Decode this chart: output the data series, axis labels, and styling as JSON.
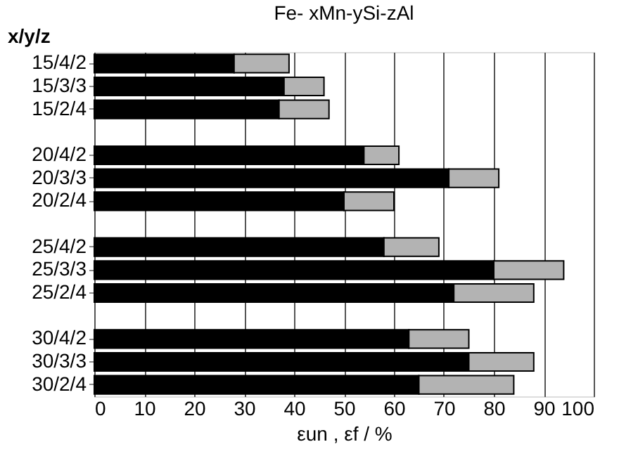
{
  "chart_data": {
    "type": "bar",
    "orientation": "horizontal",
    "stacked": true,
    "title": "Fe- xMn-ySi-zAl",
    "ylabel": "x/y/z",
    "xlabel": "εun , εf / %",
    "categories": [
      "15/4/2",
      "15/3/3",
      "15/2/4",
      null,
      "20/4/2",
      "20/3/3",
      "20/2/4",
      null,
      "25/4/2",
      "25/3/3",
      "25/2/4",
      null,
      "30/4/2",
      "30/3/3",
      "30/2/4"
    ],
    "series": [
      {
        "color": "#000000",
        "values": [
          28,
          38,
          37,
          null,
          54,
          71,
          50,
          null,
          58,
          80,
          72,
          null,
          63,
          75,
          65
        ]
      },
      {
        "color": "#b3b3b3",
        "values": [
          11,
          8,
          10,
          null,
          7,
          10,
          10,
          null,
          11,
          14,
          16,
          null,
          12,
          13,
          19
        ]
      }
    ],
    "xlim": [
      0,
      100
    ],
    "xticks": [
      0,
      10,
      20,
      30,
      40,
      50,
      60,
      70,
      80,
      90,
      100
    ],
    "grid": "x"
  }
}
